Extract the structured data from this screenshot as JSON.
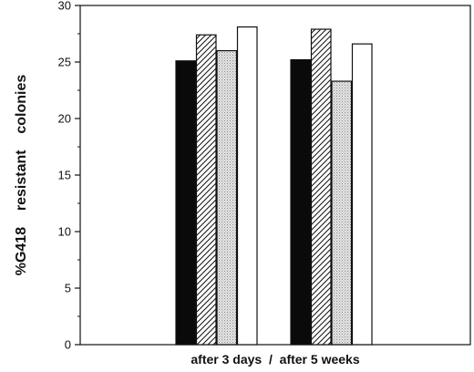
{
  "chart_data": {
    "type": "bar",
    "title": "",
    "xlabel": "after 3 days  /  after 5 weeks",
    "ylabel": "%G418    resistant    colonies",
    "ylim": [
      0,
      30
    ],
    "yticks": [
      0,
      5,
      10,
      15,
      20,
      25,
      30
    ],
    "grid": false,
    "legend": "none",
    "categories": [
      "after 3 days",
      "after 5 weeks"
    ],
    "series": [
      {
        "fill": "solid-black",
        "values": [
          25.1,
          25.2
        ]
      },
      {
        "fill": "diagonal-hatch",
        "values": [
          27.4,
          27.9
        ]
      },
      {
        "fill": "light-stipple",
        "values": [
          26.0,
          23.3
        ]
      },
      {
        "fill": "white",
        "values": [
          28.1,
          26.6
        ]
      }
    ]
  }
}
